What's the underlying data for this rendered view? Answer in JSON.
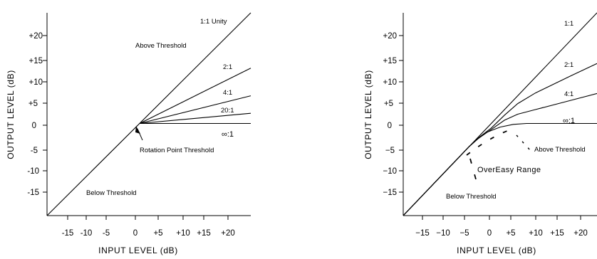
{
  "chart_data": [
    {
      "type": "line",
      "xlabel": "INPUT LEVEL (dB)",
      "ylabel": "OUTPUT LEVEL (dB)",
      "x_ticks": [
        "-15",
        "-10",
        "-5",
        "0",
        "+5",
        "+10",
        "+15",
        "+20"
      ],
      "y_ticks": [
        "+20",
        "+15",
        "+10",
        "+5",
        "0",
        "-5",
        "-10",
        "-15"
      ],
      "xlim": [
        -20,
        24
      ],
      "ylim": [
        -20,
        24
      ],
      "curve_labels": [
        {
          "text": "1:1  Unity",
          "series": "1:1"
        },
        {
          "text": "2:1",
          "series": "2:1"
        },
        {
          "text": "4:1",
          "series": "4:1"
        },
        {
          "text": "20:1",
          "series": "20:1"
        },
        {
          "text": "∞:1",
          "series": "inf:1"
        }
      ],
      "annotations": [
        "Above Threshold",
        "Rotation Point Threshold",
        "Below Threshold"
      ],
      "series": [
        {
          "name": "1:1",
          "x": [
            -20,
            24
          ],
          "y": [
            -20,
            24
          ]
        },
        {
          "name": "2:1",
          "x": [
            0,
            24
          ],
          "y": [
            0,
            12
          ]
        },
        {
          "name": "4:1",
          "x": [
            0,
            24
          ],
          "y": [
            0,
            6
          ]
        },
        {
          "name": "20:1",
          "x": [
            0,
            24
          ],
          "y": [
            0,
            2.2
          ]
        },
        {
          "name": "inf:1",
          "x": [
            0,
            24
          ],
          "y": [
            0,
            0
          ]
        }
      ]
    },
    {
      "type": "line",
      "xlabel": "INPUT LEVEL  (dB)",
      "ylabel": "OUTPUT LEVEL  (dB)",
      "x_ticks": [
        "−15",
        "−10",
        "−5",
        "0",
        "+5",
        "+10",
        "+15",
        "+20"
      ],
      "y_ticks": [
        "+20",
        "+15",
        "+10",
        "+5",
        "0",
        "−5",
        "−10",
        "−15"
      ],
      "xlim": [
        -20,
        24
      ],
      "ylim": [
        -20,
        24
      ],
      "curve_labels": [
        {
          "text": "1:1",
          "series": "1:1"
        },
        {
          "text": "2:1",
          "series": "2:1"
        },
        {
          "text": "4:1",
          "series": "4:1"
        },
        {
          "text": "∞:1",
          "series": "inf:1"
        }
      ],
      "annotations": [
        "Above Threshold",
        "OverEasy Range",
        "Below Threshold"
      ],
      "series": [
        {
          "name": "1:1",
          "x": [
            -20,
            24
          ],
          "y": [
            -20,
            24
          ]
        },
        {
          "name": "2:1",
          "x": [
            -20,
            -5,
            -3,
            0,
            3,
            6,
            10,
            18,
            24
          ],
          "y": [
            -20,
            -5,
            -3.2,
            -1,
            1.8,
            4.3,
            6.6,
            10.3,
            13
          ]
        },
        {
          "name": "4:1",
          "x": [
            -20,
            -5,
            -3,
            0,
            3,
            6,
            10,
            18,
            24
          ],
          "y": [
            -20,
            -5,
            -3.3,
            -1.3,
            0.7,
            2,
            3,
            5,
            6.5
          ]
        },
        {
          "name": "inf:1",
          "x": [
            -20,
            -5,
            -3,
            -1,
            2,
            5,
            8,
            24
          ],
          "y": [
            -20,
            -5,
            -3.3,
            -1.9,
            -0.8,
            -0.2,
            0,
            0
          ]
        }
      ],
      "overeasy_range": {
        "from": -5,
        "to": 8
      }
    }
  ]
}
